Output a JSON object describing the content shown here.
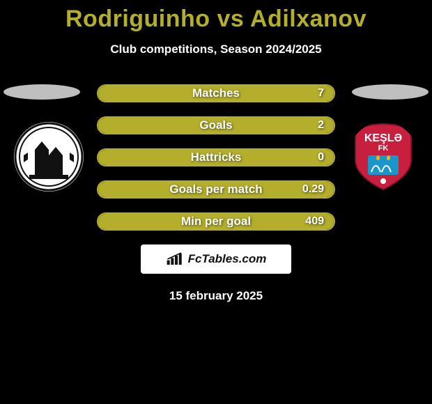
{
  "title": "Rodriguinho vs Adilxanov",
  "subtitle": "Club competitions, Season 2024/2025",
  "colors": {
    "accent": "#a5a226",
    "bar_fill": "#b3ae2c",
    "bar_border": "#b3ae2c",
    "brand_bg": "#ffffff",
    "ellipse_left": "#bfbfbf",
    "ellipse_right": "#bfbfbf",
    "title_color": "#b3ae2c"
  },
  "stats": [
    {
      "label": "Matches",
      "value": "7",
      "fill_pct": 100
    },
    {
      "label": "Goals",
      "value": "2",
      "fill_pct": 100
    },
    {
      "label": "Hattricks",
      "value": "0",
      "fill_pct": 100
    },
    {
      "label": "Goals per match",
      "value": "0.29",
      "fill_pct": 100
    },
    {
      "label": "Min per goal",
      "value": "409",
      "fill_pct": 100
    }
  ],
  "brand": "FcTables.com",
  "date": "15 february 2025",
  "logos": {
    "left_alt": "Neftchi",
    "right_alt": "Keşlə FK",
    "right_text": "KEŞLƏ",
    "right_sub": "FK"
  }
}
